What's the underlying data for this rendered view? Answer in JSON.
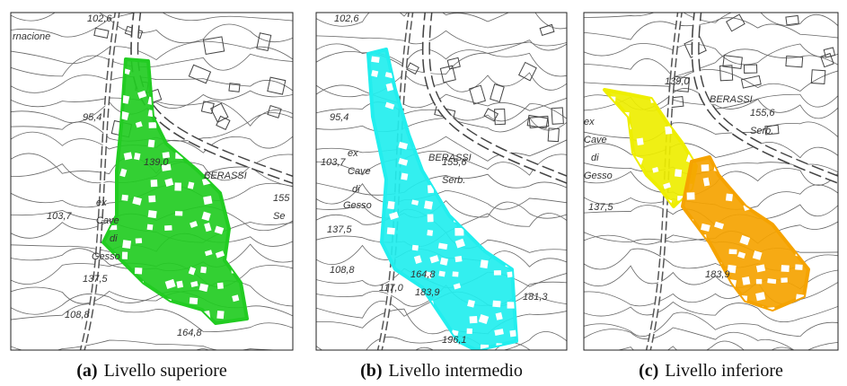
{
  "panels": [
    {
      "id": "(a)",
      "caption": "Livello superiore",
      "color": "#22cc22",
      "labels": [
        "102,6",
        "rnacione",
        "95,4",
        "139,0",
        "BERASSI",
        "103,7",
        "ex",
        "Cave",
        "di",
        "Gesso",
        "137,5",
        "108,8",
        "164,8",
        "155",
        "Se"
      ]
    },
    {
      "id": "(b)",
      "caption": "Livello intermedio",
      "color": "#22eeee",
      "labels": [
        "102,6",
        "95,4",
        "BERASSI",
        "155,6",
        "Serb.",
        "103,7",
        "ex",
        "Cave",
        "di",
        "Gesso",
        "137,5",
        "108,8",
        "117,0",
        "164,8",
        "183,9",
        "181,3",
        "196,1"
      ]
    },
    {
      "id": "(c)",
      "caption": "Livello inferiore",
      "color": "#f5a300",
      "labels": [
        "139,0",
        "BERASSI",
        "155,6",
        "Serb.",
        "ex",
        "Cave",
        "di",
        "Gesso",
        "137,5",
        "183,9"
      ]
    }
  ]
}
